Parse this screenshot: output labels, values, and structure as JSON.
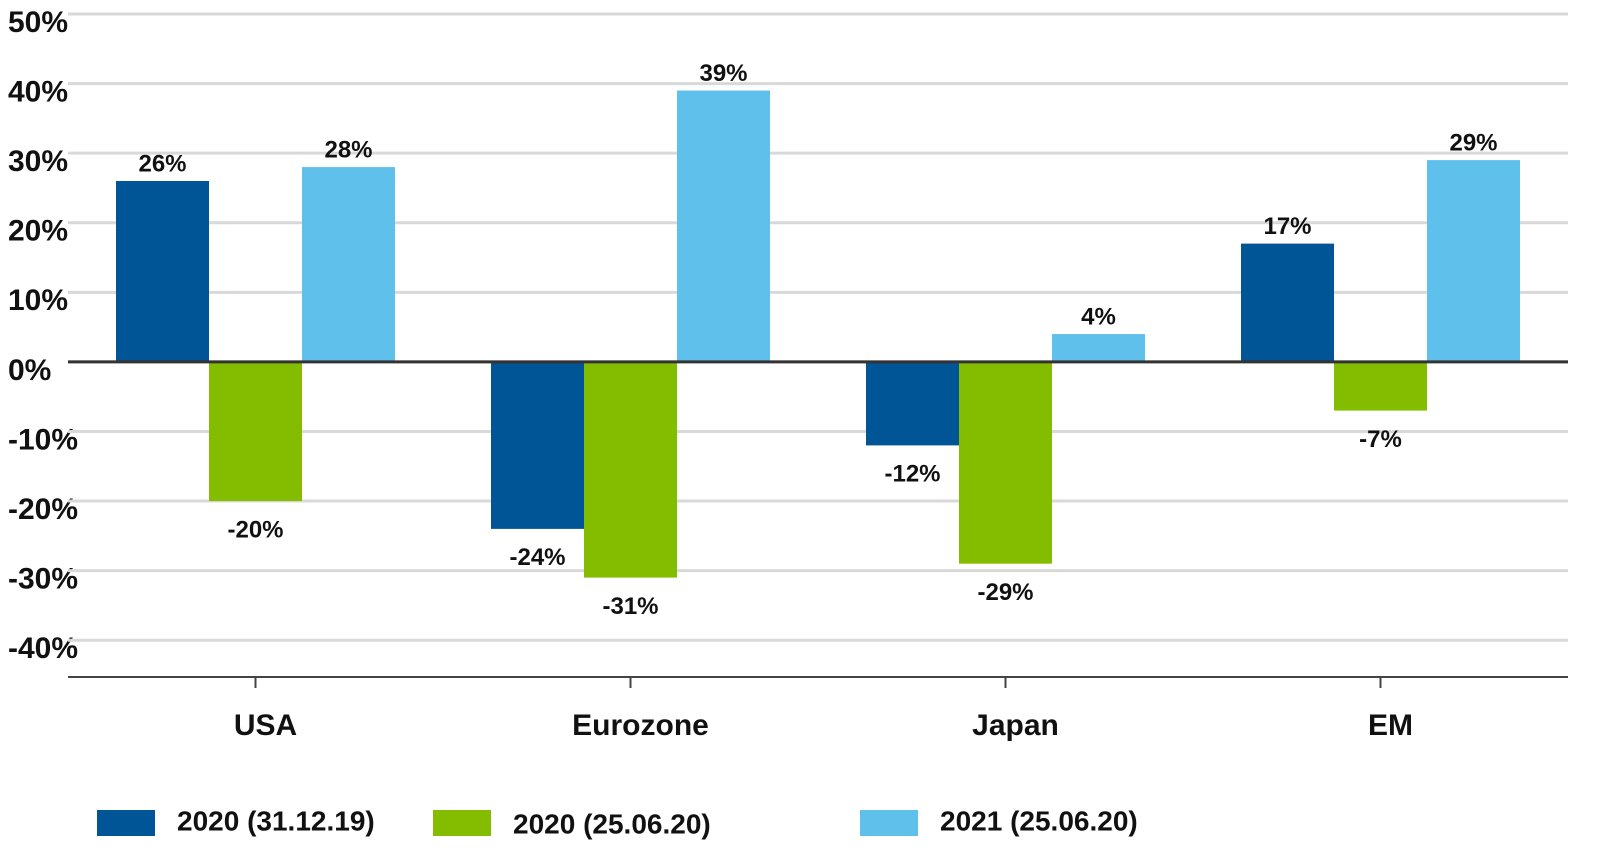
{
  "chart_data": {
    "type": "bar",
    "categories": [
      "USA",
      "Eurozone",
      "Japan",
      "EM"
    ],
    "series": [
      {
        "name": "2020 (31.12.19)",
        "color": "#005596",
        "values": [
          26,
          -24,
          -12,
          17
        ],
        "value_labels": [
          "26%",
          "-24%",
          "-12%",
          "17%"
        ]
      },
      {
        "name": "2020 (25.06.20)",
        "color": "#84bd00",
        "values": [
          -20,
          -31,
          -29,
          -7
        ],
        "value_labels": [
          "-20%",
          "-31%",
          "-29%",
          "-7%"
        ]
      },
      {
        "name": "2021 (25.06.20)",
        "color": "#5fc0eb",
        "values": [
          28,
          39,
          4,
          29
        ],
        "value_labels": [
          "28%",
          "39%",
          "4%",
          "29%"
        ]
      }
    ],
    "ylim": [
      -45,
      50
    ],
    "yticks": [
      {
        "value": -40,
        "label": "-40%"
      },
      {
        "value": -30,
        "label": "-30%"
      },
      {
        "value": -20,
        "label": "-20%"
      },
      {
        "value": -10,
        "label": "-10%"
      },
      {
        "value": 0,
        "label": "0%"
      },
      {
        "value": 10,
        "label": "10%"
      },
      {
        "value": 20,
        "label": "20%"
      },
      {
        "value": 30,
        "label": "30%"
      },
      {
        "value": 40,
        "label": "40%"
      },
      {
        "value": 50,
        "label": "50%"
      }
    ],
    "grid": true,
    "legend": "bottom"
  }
}
